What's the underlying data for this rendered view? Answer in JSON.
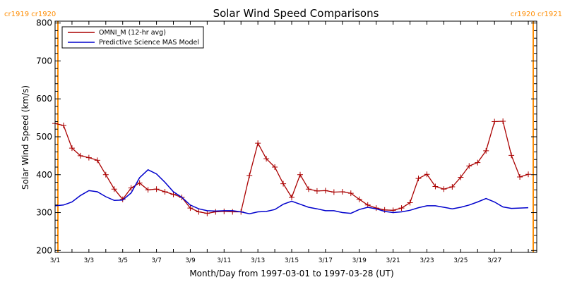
{
  "chart_data": {
    "type": "line",
    "title": "Solar Wind Speed Comparisons",
    "xlabel": "Month/Day from 1997-03-01 to 1997-03-28 (UT)",
    "ylabel": "Solar Wind Speed (km/s)",
    "xlim": [
      "1997-03-01",
      "1997-03-29 12:00"
    ],
    "ylim": [
      195,
      805
    ],
    "x_ticks": [
      "3/1",
      "3/3",
      "3/5",
      "3/7",
      "3/9",
      "3/11",
      "3/13",
      "3/15",
      "3/17",
      "3/19",
      "3/21",
      "3/23",
      "3/25",
      "3/27"
    ],
    "y_ticks": [
      "200",
      "300",
      "400",
      "500",
      "600",
      "700",
      "800"
    ],
    "grid": false,
    "legend_position": "top-left",
    "carrington_labels": [
      {
        "text": "cr1919 cr1920",
        "x": "1997-03-01 04:00",
        "align": "left"
      },
      {
        "text": "cr1920 cr1921",
        "x": "1997-03-29 07:00",
        "align": "right"
      }
    ],
    "series": [
      {
        "name": "OMNI_M (12-hr avg)",
        "color": "#aa0000",
        "marker": "plus",
        "x": [
          "1997-03-01 00:00",
          "1997-03-01 12:00",
          "1997-03-02 00:00",
          "1997-03-02 12:00",
          "1997-03-03 00:00",
          "1997-03-03 12:00",
          "1997-03-04 00:00",
          "1997-03-04 12:00",
          "1997-03-05 00:00",
          "1997-03-05 12:00",
          "1997-03-06 00:00",
          "1997-03-06 12:00",
          "1997-03-07 00:00",
          "1997-03-07 12:00",
          "1997-03-08 00:00",
          "1997-03-08 12:00",
          "1997-03-09 00:00",
          "1997-03-09 12:00",
          "1997-03-10 00:00",
          "1997-03-10 12:00",
          "1997-03-11 00:00",
          "1997-03-11 12:00",
          "1997-03-12 00:00",
          "1997-03-12 12:00",
          "1997-03-13 00:00",
          "1997-03-13 12:00",
          "1997-03-14 00:00",
          "1997-03-14 12:00",
          "1997-03-15 00:00",
          "1997-03-15 12:00",
          "1997-03-16 00:00",
          "1997-03-16 12:00",
          "1997-03-17 00:00",
          "1997-03-17 12:00",
          "1997-03-18 00:00",
          "1997-03-18 12:00",
          "1997-03-19 00:00",
          "1997-03-19 12:00",
          "1997-03-20 00:00",
          "1997-03-20 12:00",
          "1997-03-21 00:00",
          "1997-03-21 12:00",
          "1997-03-22 00:00",
          "1997-03-22 12:00",
          "1997-03-23 00:00",
          "1997-03-23 12:00",
          "1997-03-24 00:00",
          "1997-03-24 12:00",
          "1997-03-25 00:00",
          "1997-03-25 12:00",
          "1997-03-26 00:00",
          "1997-03-26 12:00",
          "1997-03-27 00:00",
          "1997-03-27 12:00",
          "1997-03-28 00:00",
          "1997-03-28 12:00",
          "1997-03-29 00:00"
        ],
        "y": [
          535,
          530,
          470,
          450,
          445,
          438,
          400,
          362,
          335,
          365,
          378,
          360,
          362,
          355,
          348,
          340,
          312,
          302,
          298,
          302,
          303,
          302,
          302,
          398,
          483,
          442,
          420,
          376,
          340,
          400,
          362,
          357,
          358,
          354,
          355,
          351,
          335,
          320,
          312,
          307,
          306,
          312,
          326,
          390,
          401,
          369,
          362,
          368,
          393,
          423,
          432,
          463,
          540,
          541,
          451,
          394,
          401
        ]
      },
      {
        "name": "Predictive Science MAS Model",
        "color": "#0000cc",
        "marker": "none",
        "x": [
          "1997-03-01 00:00",
          "1997-03-01 12:00",
          "1997-03-02 00:00",
          "1997-03-02 12:00",
          "1997-03-03 00:00",
          "1997-03-03 12:00",
          "1997-03-04 00:00",
          "1997-03-04 12:00",
          "1997-03-05 00:00",
          "1997-03-05 12:00",
          "1997-03-06 00:00",
          "1997-03-06 12:00",
          "1997-03-07 00:00",
          "1997-03-07 12:00",
          "1997-03-08 00:00",
          "1997-03-08 12:00",
          "1997-03-09 00:00",
          "1997-03-09 12:00",
          "1997-03-10 00:00",
          "1997-03-10 12:00",
          "1997-03-11 00:00",
          "1997-03-11 12:00",
          "1997-03-12 00:00",
          "1997-03-12 12:00",
          "1997-03-13 00:00",
          "1997-03-13 12:00",
          "1997-03-14 00:00",
          "1997-03-14 12:00",
          "1997-03-15 00:00",
          "1997-03-15 12:00",
          "1997-03-16 00:00",
          "1997-03-16 12:00",
          "1997-03-17 00:00",
          "1997-03-17 12:00",
          "1997-03-18 00:00",
          "1997-03-18 12:00",
          "1997-03-19 00:00",
          "1997-03-19 12:00",
          "1997-03-20 00:00",
          "1997-03-20 12:00",
          "1997-03-21 00:00",
          "1997-03-21 12:00",
          "1997-03-22 00:00",
          "1997-03-22 12:00",
          "1997-03-23 00:00",
          "1997-03-23 12:00",
          "1997-03-24 00:00",
          "1997-03-24 12:00",
          "1997-03-25 00:00",
          "1997-03-25 12:00",
          "1997-03-26 00:00",
          "1997-03-26 12:00",
          "1997-03-27 00:00",
          "1997-03-27 12:00",
          "1997-03-28 00:00",
          "1997-03-28 12:00",
          "1997-03-29 00:00"
        ],
        "y": [
          318,
          320,
          328,
          345,
          358,
          355,
          342,
          332,
          333,
          352,
          392,
          413,
          402,
          380,
          355,
          340,
          320,
          310,
          305,
          304,
          305,
          305,
          302,
          297,
          302,
          303,
          308,
          322,
          330,
          322,
          314,
          310,
          305,
          305,
          300,
          298,
          308,
          314,
          310,
          303,
          300,
          302,
          306,
          313,
          318,
          318,
          314,
          310,
          314,
          320,
          328,
          337,
          328,
          315,
          311,
          312,
          313
        ]
      }
    ]
  }
}
